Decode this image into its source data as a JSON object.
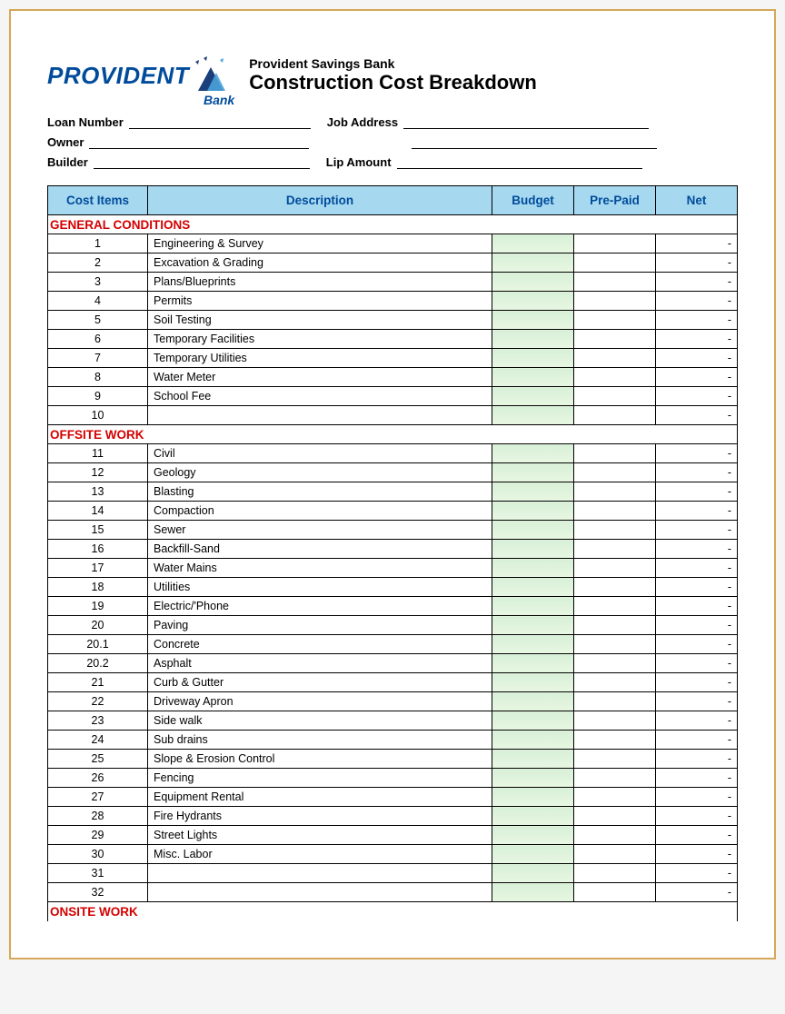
{
  "logo": {
    "text": "PROVIDENT",
    "sub": "Bank",
    "colors": {
      "primary": "#004b9b",
      "accent1": "#4aa3d9",
      "accent2": "#1b3f7a"
    }
  },
  "header": {
    "subtitle": "Provident Savings Bank",
    "title": "Construction Cost Breakdown"
  },
  "info_fields": {
    "loan_number": "Loan Number",
    "job_address": "Job Address",
    "owner": "Owner",
    "builder": "Builder",
    "lip_amount": "Lip Amount"
  },
  "table": {
    "headers": {
      "cost_items": "Cost  Items",
      "description": "Description",
      "budget": "Budget",
      "prepaid": "Pre-Paid",
      "net": "Net"
    },
    "header_bg": "#a6d8f0",
    "header_fg": "#004b9b",
    "section_fg": "#d40000",
    "budget_fill": "#d8f0d8",
    "sections": [
      {
        "title": "GENERAL CONDITIONS",
        "rows": [
          {
            "n": "1",
            "desc": "Engineering & Survey",
            "net": "-"
          },
          {
            "n": "2",
            "desc": "Excavation & Grading",
            "net": "-"
          },
          {
            "n": "3",
            "desc": "Plans/Blueprints",
            "net": "-"
          },
          {
            "n": "4",
            "desc": "Permits",
            "net": "-"
          },
          {
            "n": "5",
            "desc": "Soil Testing",
            "net": "-"
          },
          {
            "n": "6",
            "desc": "Temporary Facilities",
            "net": "-"
          },
          {
            "n": "7",
            "desc": "Temporary Utilities",
            "net": "-"
          },
          {
            "n": "8",
            "desc": "Water Meter",
            "net": "-"
          },
          {
            "n": "9",
            "desc": "School Fee",
            "net": "-"
          },
          {
            "n": "10",
            "desc": "",
            "net": "-"
          }
        ]
      },
      {
        "title": "OFFSITE WORK",
        "rows": [
          {
            "n": "11",
            "desc": "Civil",
            "net": "-"
          },
          {
            "n": "12",
            "desc": "Geology",
            "net": "-"
          },
          {
            "n": "13",
            "desc": "Blasting",
            "net": "-"
          },
          {
            "n": "14",
            "desc": "Compaction",
            "net": "-"
          },
          {
            "n": "15",
            "desc": "Sewer",
            "net": "-"
          },
          {
            "n": "16",
            "desc": "Backfill-Sand",
            "net": "-"
          },
          {
            "n": "17",
            "desc": "Water Mains",
            "net": "-"
          },
          {
            "n": "18",
            "desc": "Utilities",
            "net": "-"
          },
          {
            "n": "19",
            "desc": "Electric/'Phone",
            "net": "-"
          },
          {
            "n": "20",
            "desc": "Paving",
            "net": "-"
          },
          {
            "n": "20.1",
            "desc": "Concrete",
            "net": "-"
          },
          {
            "n": "20.2",
            "desc": "Asphalt",
            "net": "-"
          },
          {
            "n": "21",
            "desc": "Curb & Gutter",
            "net": "-"
          },
          {
            "n": "22",
            "desc": "Driveway Apron",
            "net": "-"
          },
          {
            "n": "23",
            "desc": "Side walk",
            "net": "-"
          },
          {
            "n": "24",
            "desc": "Sub drains",
            "net": "-"
          },
          {
            "n": "25",
            "desc": "Slope & Erosion Control",
            "net": "-"
          },
          {
            "n": "26",
            "desc": "Fencing",
            "net": "-"
          },
          {
            "n": "27",
            "desc": "Equipment Rental",
            "net": "-"
          },
          {
            "n": "28",
            "desc": "Fire Hydrants",
            "net": "-"
          },
          {
            "n": "29",
            "desc": "Street Lights",
            "net": "-"
          },
          {
            "n": "30",
            "desc": "Misc. Labor",
            "net": "-"
          },
          {
            "n": "31",
            "desc": "",
            "net": "-"
          },
          {
            "n": "32",
            "desc": "",
            "net": "-"
          }
        ]
      },
      {
        "title": "ONSITE WORK",
        "rows": []
      }
    ]
  }
}
